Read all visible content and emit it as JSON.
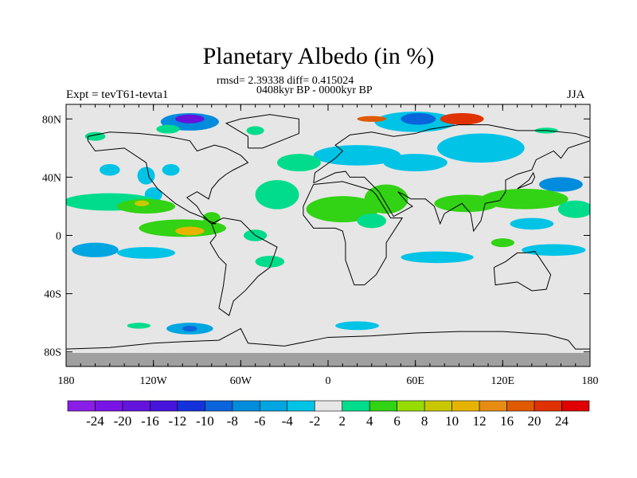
{
  "chart_data": {
    "type": "heatmap",
    "title": "Planetary Albedo (in %)",
    "stats": "rmsd= 2.39338 diff= 0.415024",
    "period": "0408kyr BP - 0000kyr BP",
    "left_label": "Expt = tevT61-tevta1",
    "right_label": "JJA",
    "xlim": [
      -180,
      180
    ],
    "ylim": [
      -90,
      90
    ],
    "x_ticks": [
      {
        "v": -180,
        "label": "180"
      },
      {
        "v": -120,
        "label": "120W"
      },
      {
        "v": -60,
        "label": "60W"
      },
      {
        "v": 0,
        "label": "0"
      },
      {
        "v": 60,
        "label": "60E"
      },
      {
        "v": 120,
        "label": "120E"
      },
      {
        "v": 180,
        "label": "180"
      }
    ],
    "y_ticks": [
      {
        "v": 80,
        "label": "80N"
      },
      {
        "v": 40,
        "label": "40N"
      },
      {
        "v": 0,
        "label": "0"
      },
      {
        "v": -40,
        "label": "40S"
      },
      {
        "v": -80,
        "label": "80S"
      }
    ],
    "colorbar": {
      "labels": [
        "-24",
        "-20",
        "-16",
        "-12",
        "-10",
        "-8",
        "-6",
        "-4",
        "-2",
        "2",
        "4",
        "6",
        "8",
        "10",
        "12",
        "16",
        "20",
        "24"
      ],
      "colors": [
        "#8a1ee6",
        "#7814e6",
        "#6414dc",
        "#4614dc",
        "#1432dc",
        "#0a64dc",
        "#008cdc",
        "#00a5e1",
        "#00c3e6",
        "#e6e6e6",
        "#00dc8c",
        "#32d214",
        "#96dc00",
        "#c8c800",
        "#e6b400",
        "#e68c14",
        "#e05a00",
        "#e03200",
        "#e00000"
      ]
    },
    "missing_color": "#a0a0a0",
    "background_color": "#e6e6e6",
    "anomaly_regions": [
      {
        "lon": 60,
        "lat": 78,
        "rlon": 28,
        "rlat": 7,
        "level": 8
      },
      {
        "lon": 62,
        "lat": 80,
        "rlon": 12,
        "rlat": 4,
        "level": 5
      },
      {
        "lon": 92,
        "lat": 80,
        "rlon": 15,
        "rlat": 4,
        "level": 17
      },
      {
        "lon": 30,
        "lat": 80,
        "rlon": 10,
        "rlat": 2,
        "level": 16
      },
      {
        "lon": -95,
        "lat": 78,
        "rlon": 20,
        "rlat": 6,
        "level": 6
      },
      {
        "lon": -95,
        "lat": 80,
        "rlon": 10,
        "rlat": 3,
        "level": 2
      },
      {
        "lon": -110,
        "lat": 73,
        "rlon": 8,
        "rlat": 3,
        "level": 10
      },
      {
        "lon": -160,
        "lat": 68,
        "rlon": 7,
        "rlat": 3,
        "level": 10
      },
      {
        "lon": -50,
        "lat": 72,
        "rlon": 6,
        "rlat": 3,
        "level": 10
      },
      {
        "lon": 150,
        "lat": 72,
        "rlon": 8,
        "rlat": 2,
        "level": 10
      },
      {
        "lon": 20,
        "lat": 55,
        "rlon": 30,
        "rlat": 7,
        "level": 8
      },
      {
        "lon": 105,
        "lat": 60,
        "rlon": 30,
        "rlat": 10,
        "level": 8
      },
      {
        "lon": 60,
        "lat": 50,
        "rlon": 22,
        "rlat": 6,
        "level": 8
      },
      {
        "lon": -20,
        "lat": 50,
        "rlon": 15,
        "rlat": 6,
        "level": 10
      },
      {
        "lon": -150,
        "lat": 45,
        "rlon": 7,
        "rlat": 4,
        "level": 8
      },
      {
        "lon": -125,
        "lat": 41,
        "rlon": 6,
        "rlat": 6,
        "level": 8
      },
      {
        "lon": -108,
        "lat": 45,
        "rlon": 6,
        "rlat": 4,
        "level": 8
      },
      {
        "lon": -120,
        "lat": 28,
        "rlon": 6,
        "rlat": 5,
        "level": 8
      },
      {
        "lon": -150,
        "lat": 23,
        "rlon": 32,
        "rlat": 6,
        "level": 10
      },
      {
        "lon": -125,
        "lat": 20,
        "rlon": 20,
        "rlat": 5,
        "level": 11
      },
      {
        "lon": -128,
        "lat": 22,
        "rlon": 5,
        "rlat": 2,
        "level": 13
      },
      {
        "lon": -100,
        "lat": 5,
        "rlon": 30,
        "rlat": 6,
        "level": 11
      },
      {
        "lon": -95,
        "lat": 3,
        "rlon": 10,
        "rlat": 3,
        "level": 14
      },
      {
        "lon": -80,
        "lat": 12,
        "rlon": 6,
        "rlat": 4,
        "level": 11
      },
      {
        "lon": -35,
        "lat": 28,
        "rlon": 15,
        "rlat": 10,
        "level": 10
      },
      {
        "lon": -50,
        "lat": 0,
        "rlon": 8,
        "rlat": 4,
        "level": 10
      },
      {
        "lon": 10,
        "lat": 18,
        "rlon": 25,
        "rlat": 9,
        "level": 11
      },
      {
        "lon": 40,
        "lat": 25,
        "rlon": 15,
        "rlat": 10,
        "level": 11
      },
      {
        "lon": 30,
        "lat": 10,
        "rlon": 10,
        "rlat": 5,
        "level": 10
      },
      {
        "lon": 95,
        "lat": 22,
        "rlon": 22,
        "rlat": 6,
        "level": 11
      },
      {
        "lon": 135,
        "lat": 25,
        "rlon": 30,
        "rlat": 7,
        "level": 11
      },
      {
        "lon": 170,
        "lat": 18,
        "rlon": 12,
        "rlat": 6,
        "level": 10
      },
      {
        "lon": 160,
        "lat": 35,
        "rlon": 15,
        "rlat": 5,
        "level": 6
      },
      {
        "lon": -160,
        "lat": -10,
        "rlon": 16,
        "rlat": 5,
        "level": 7
      },
      {
        "lon": -125,
        "lat": -12,
        "rlon": 20,
        "rlat": 4,
        "level": 8
      },
      {
        "lon": 75,
        "lat": -15,
        "rlon": 25,
        "rlat": 4,
        "level": 8
      },
      {
        "lon": 155,
        "lat": -10,
        "rlon": 22,
        "rlat": 4,
        "level": 8
      },
      {
        "lon": 120,
        "lat": -5,
        "rlon": 8,
        "rlat": 3,
        "level": 11
      },
      {
        "lon": -40,
        "lat": -18,
        "rlon": 10,
        "rlat": 4,
        "level": 10
      },
      {
        "lon": 140,
        "lat": 8,
        "rlon": 15,
        "rlat": 4,
        "level": 8
      },
      {
        "lon": -95,
        "lat": -64,
        "rlon": 16,
        "rlat": 4,
        "level": 7
      },
      {
        "lon": -95,
        "lat": -64,
        "rlon": 5,
        "rlat": 2,
        "level": 5
      },
      {
        "lon": -130,
        "lat": -62,
        "rlon": 8,
        "rlat": 2,
        "level": 10
      },
      {
        "lon": 20,
        "lat": -62,
        "rlon": 15,
        "rlat": 3,
        "level": 8
      }
    ]
  }
}
